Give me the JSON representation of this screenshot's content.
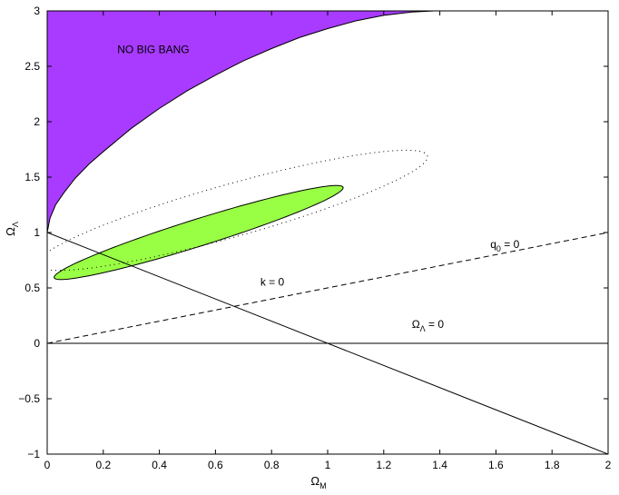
{
  "chart_data": {
    "type": "area",
    "title": "",
    "xlabel": "Ω",
    "xlabel_sub": "M",
    "ylabel": "Ω",
    "ylabel_sub": "Λ",
    "xlim": [
      0,
      2
    ],
    "ylim": [
      -1,
      3
    ],
    "x_ticks": [
      0,
      0.2,
      0.4,
      0.6,
      0.8,
      1,
      1.2,
      1.4,
      1.6,
      1.8,
      2
    ],
    "x_tick_labels": [
      "0",
      "0.2",
      "0.4",
      "0.6",
      "0.8",
      "1",
      "1.2",
      "1.4",
      "1.6",
      "1.8",
      "2"
    ],
    "y_ticks": [
      -1,
      -0.5,
      0,
      0.5,
      1,
      1.5,
      2,
      2.5,
      3
    ],
    "y_tick_labels": [
      "−1",
      "−0.5",
      "0",
      "0.5",
      "1",
      "1.5",
      "2",
      "2.5",
      "3"
    ],
    "grid": false,
    "colors": {
      "no_big_bang": "#a83bff",
      "confidence_inner": "#99ff44",
      "lines": "#000000"
    },
    "regions": {
      "no_big_bang": {
        "label": "NO BIG BANG",
        "boundary": [
          [
            0.0,
            1.0
          ],
          [
            0.01,
            1.13
          ],
          [
            0.03,
            1.25
          ],
          [
            0.06,
            1.36
          ],
          [
            0.1,
            1.49
          ],
          [
            0.15,
            1.62
          ],
          [
            0.2,
            1.73
          ],
          [
            0.3,
            1.94
          ],
          [
            0.4,
            2.12
          ],
          [
            0.5,
            2.28
          ],
          [
            0.6,
            2.42
          ],
          [
            0.7,
            2.55
          ],
          [
            0.8,
            2.66
          ],
          [
            0.9,
            2.76
          ],
          [
            1.0,
            2.84
          ],
          [
            1.1,
            2.91
          ],
          [
            1.2,
            2.96
          ],
          [
            1.3,
            2.99
          ],
          [
            1.38,
            3.0
          ]
        ]
      }
    },
    "contours": [
      {
        "level": "inner",
        "style": "filled",
        "center": [
          0.54,
          1.0
        ],
        "half_axes": [
          0.66,
          0.1
        ],
        "angle_deg": 39.2
      },
      {
        "level": "outer",
        "style": "dotted",
        "center": [
          0.66,
          1.2
        ],
        "half_axes": [
          0.86,
          0.2
        ],
        "angle_deg": 37.1
      }
    ],
    "lines": [
      {
        "label": "k = 0",
        "style": "solid",
        "points": [
          [
            0,
            1
          ],
          [
            2,
            -1
          ]
        ]
      },
      {
        "label": "q",
        "label_sub": "0",
        "label_tail": " = 0",
        "style": "dashed",
        "points": [
          [
            0,
            0
          ],
          [
            2,
            1
          ]
        ]
      },
      {
        "label": "Ω",
        "label_sub": "Λ",
        "label_tail": " = 0",
        "style": "solid",
        "points": [
          [
            0,
            0
          ],
          [
            2,
            0
          ]
        ]
      }
    ],
    "annotations": [
      {
        "text": "NO BIG BANG",
        "at": [
          0.25,
          2.62
        ]
      },
      {
        "text": "k = 0",
        "at": [
          0.76,
          0.52
        ]
      },
      {
        "text": "q",
        "sub": "0",
        "tail": " = 0",
        "at": [
          1.58,
          0.86
        ]
      },
      {
        "text": "Ω",
        "sub": "Λ",
        "tail": " = 0",
        "at": [
          1.3,
          0.14
        ]
      }
    ]
  }
}
